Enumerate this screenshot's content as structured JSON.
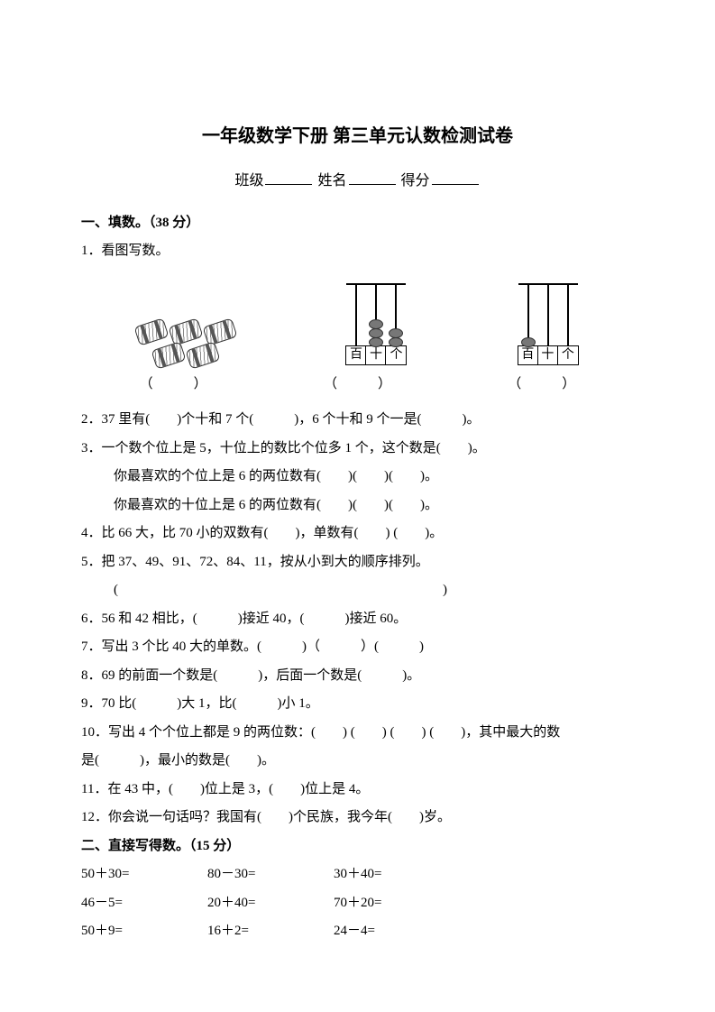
{
  "title": "一年级数学下册 第三单元认数检测试卷",
  "header": {
    "class_label": "班级",
    "name_label": "姓名",
    "score_label": "得分"
  },
  "s1": {
    "head": "一、填数。（38 分）",
    "q1": "1．看图写数。",
    "paren": "（　　　）",
    "abacus_labels": {
      "h": "百",
      "t": "十",
      "o": "个"
    },
    "q2": "2．37 里有(　　)个十和 7 个(　　　)，6 个十和 9 个一是(　　　)。",
    "q3": "3．一个数个位上是 5，十位上的数比个位多 1 个，这个数是(　　)。",
    "q3a": "你最喜欢的个位上是 6 的两位数有(　　)(　　)(　　)。",
    "q3b": "你最喜欢的十位上是 6 的两位数有(　　)(　　)(　　)。",
    "q4": "4．比 66 大，比 70 小的双数有(　　)，单数有(　　) (　　)。",
    "q5": "5．把 37、49、91、72、84、11，按从小到大的顺序排列。",
    "q5a": "(　　　　　　　　　　　　　　　　　　　　　　　　)",
    "q6": "6．56 和 42 相比，(　　　)接近 40，(　　　)接近 60。",
    "q7": "7．写出 3 个比 40 大的单数。(　　　)（　　　）(　　　)",
    "q8": "8．69 的前面一个数是(　　　)，后面一个数是(　　　)。",
    "q9": "9．70 比(　　　)大 1，比(　　　)小 1。",
    "q10": "10．写出 4 个个位上都是 9 的两位数：(　　) (　　) (　　) (　　)，其中最大的数",
    "q10b": "是(　　　)，最小的数是(　　)。",
    "q11": "11．在 43 中，(　　)位上是 3，(　　)位上是 4。",
    "q12": "12．你会说一句话吗？我国有(　　)个民族，我今年(　　)岁。"
  },
  "s2": {
    "head": "二、直接写得数。（15 分）",
    "rows": [
      [
        "50＋30=",
        "80－30=",
        "30＋40="
      ],
      [
        "46－5=",
        "20＋40=",
        "70＋20="
      ],
      [
        "50＋9=",
        "16＋2=",
        "24－4="
      ]
    ]
  },
  "colors": {
    "text": "#000000",
    "bg": "#ffffff"
  }
}
